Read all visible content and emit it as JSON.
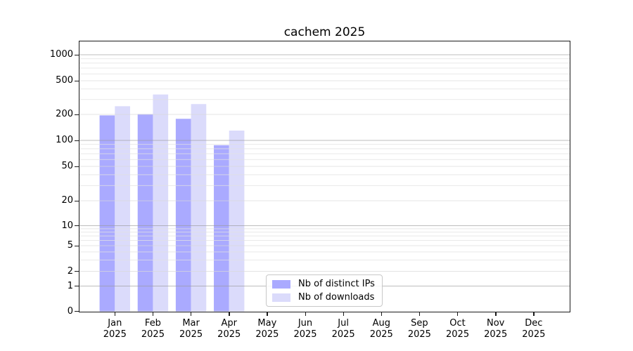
{
  "chart_data": {
    "type": "bar",
    "title": "cachem 2025",
    "categories": [
      "Jan",
      "Feb",
      "Mar",
      "Apr",
      "May",
      "Jun",
      "Jul",
      "Aug",
      "Sep",
      "Oct",
      "Nov",
      "Dec"
    ],
    "category_year": "2025",
    "series": [
      {
        "name": "Nb of distinct IPs",
        "color": "#aaaaff",
        "values": [
          195,
          202,
          178,
          88,
          null,
          null,
          null,
          null,
          null,
          null,
          null,
          null
        ]
      },
      {
        "name": "Nb of downloads",
        "color": "#dbdbfb",
        "values": [
          250,
          344,
          265,
          130,
          null,
          null,
          null,
          null,
          null,
          null,
          null,
          null
        ]
      }
    ],
    "yticks": [
      0,
      1,
      2,
      5,
      10,
      20,
      50,
      100,
      200,
      500,
      1000
    ],
    "yscale": "symlog",
    "ylim": [
      0,
      1430
    ],
    "xlabel": "",
    "ylabel": "",
    "grid": "major-and-minor-horizontal",
    "legend_position": "lower-center-inside"
  }
}
